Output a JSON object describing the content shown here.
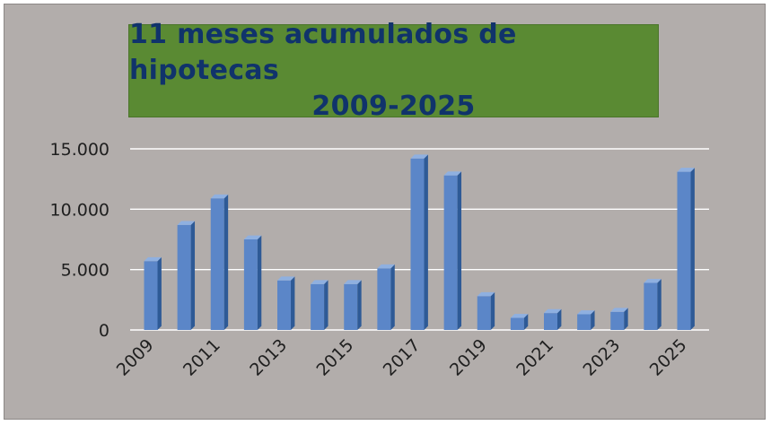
{
  "chart_data": {
    "type": "bar",
    "title_lines": [
      "11 meses acumulados de hipotecas",
      "2009-2025"
    ],
    "categories": [
      "2009",
      "2010",
      "2011",
      "2012",
      "2013",
      "2014",
      "2015",
      "2016",
      "2017",
      "2018",
      "2019",
      "2020",
      "2021",
      "2022",
      "2023",
      "2024",
      "2025"
    ],
    "x_tick_labels": [
      "2009",
      "2011",
      "2013",
      "2015",
      "2017",
      "2019",
      "2021",
      "2023",
      "2025"
    ],
    "y_tick_labels": [
      "0",
      "5.000",
      "10.000",
      "15.000"
    ],
    "values": [
      5700,
      8700,
      10900,
      7500,
      4100,
      3800,
      3800,
      5100,
      14200,
      12800,
      2800,
      1000,
      1400,
      1300,
      1500,
      3900,
      13100
    ],
    "ylim": [
      0,
      15000
    ],
    "xlabel": "",
    "ylabel": "",
    "grid": true,
    "legend": "none",
    "colors": {
      "bar_front": "#5b86c8",
      "bar_side": "#2e5a96",
      "bar_top": "#8fb0e0",
      "grid": "#ffffff",
      "plot_bg": "#b2adab",
      "title_bg": "#5a8a33",
      "title_text": "#10336b"
    }
  }
}
